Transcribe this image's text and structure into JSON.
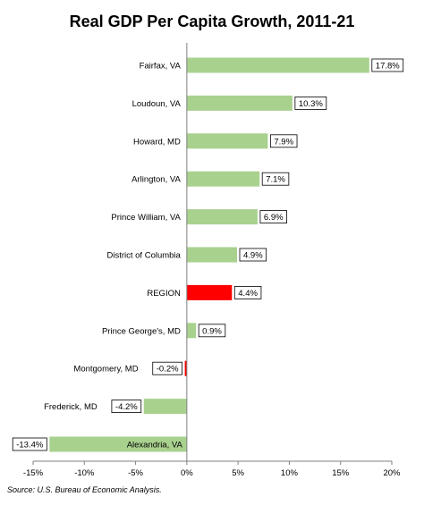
{
  "chart_data": {
    "type": "bar",
    "orientation": "horizontal",
    "title": "Real GDP Per Capita Growth, 2011-21",
    "xlabel": "",
    "ylabel": "",
    "xlim": [
      -15,
      20
    ],
    "x_ticks": [
      -15,
      -10,
      -5,
      0,
      5,
      10,
      15,
      20
    ],
    "x_tick_labels": [
      "-15%",
      "-10%",
      "-5%",
      "0%",
      "5%",
      "10%",
      "15%",
      "20%"
    ],
    "grid": false,
    "legend": "none",
    "categories": [
      "Fairfax, VA",
      "Loudoun, VA",
      "Howard, MD",
      "Arlington, VA",
      "Prince William, VA",
      "District of Columbia",
      "REGION",
      "Prince George's, MD",
      "Montgomery, MD",
      "Frederick, MD",
      "Alexandria, VA"
    ],
    "values": [
      17.8,
      10.3,
      7.9,
      7.1,
      6.9,
      4.9,
      4.4,
      0.9,
      -0.2,
      -4.2,
      -13.4
    ],
    "data_labels": [
      "17.8%",
      "10.3%",
      "7.9%",
      "7.1%",
      "6.9%",
      "4.9%",
      "4.4%",
      "0.9%",
      "-0.2%",
      "-4.2%",
      "-13.4%"
    ],
    "colors": {
      "default": "#a9d18e",
      "highlight": "#ff0000",
      "highlighted_categories": [
        "REGION",
        "Montgomery, MD"
      ]
    }
  },
  "source": "Source: U.S. Bureau of Economic Analysis."
}
